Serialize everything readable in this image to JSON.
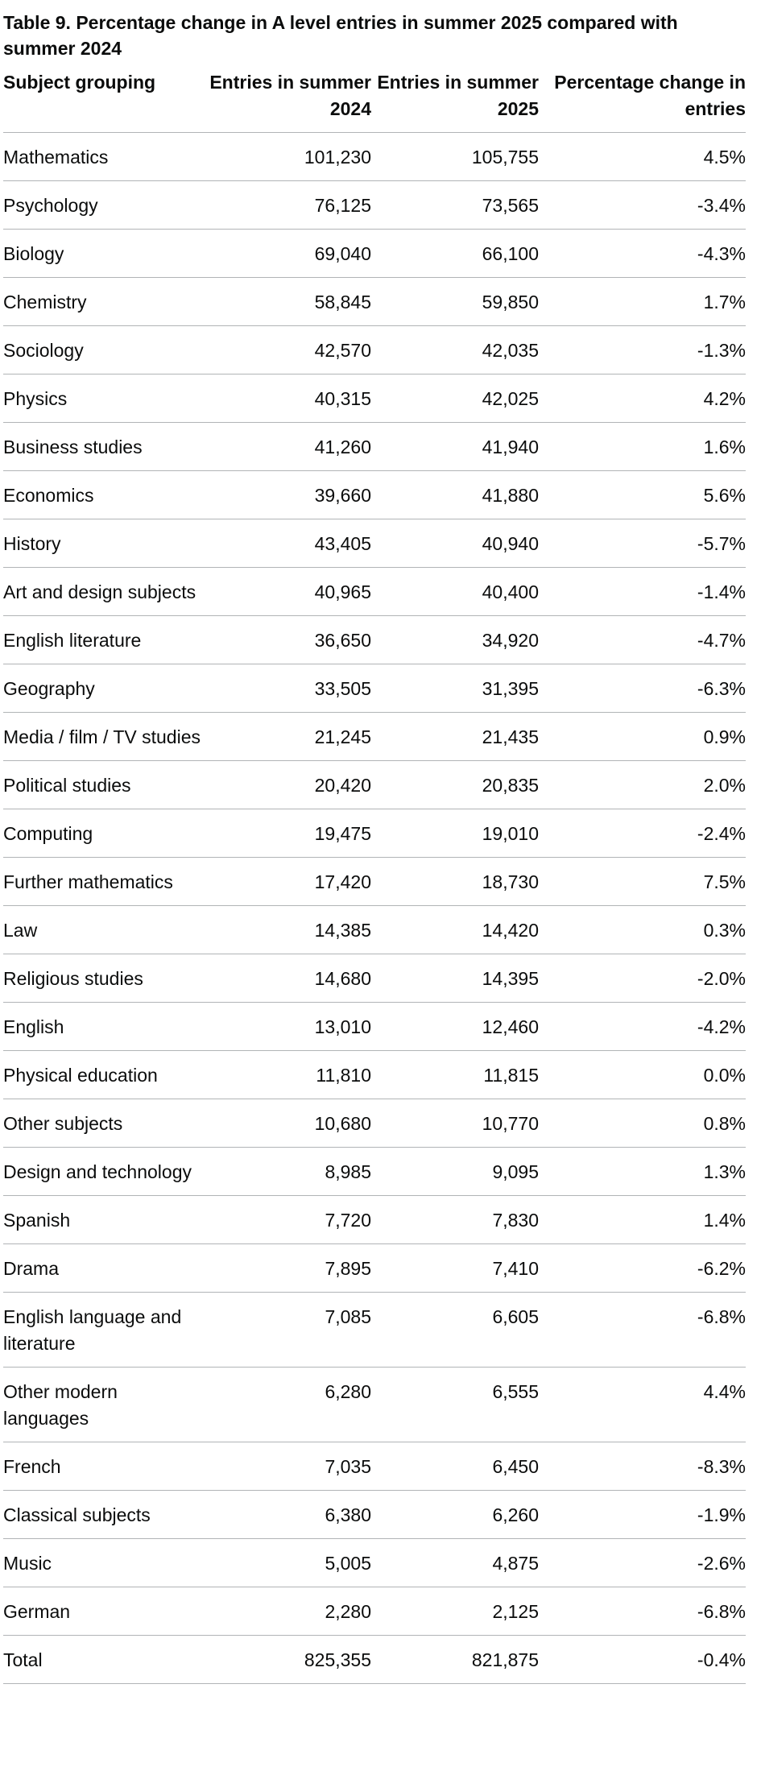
{
  "caption": "Table 9. Percentage change in A level entries in summer 2025 compared with summer 2024",
  "headers": {
    "subject": "Subject grouping",
    "entries_2024": "Entries in summer 2024",
    "entries_2025": "Entries in summer 2025",
    "pct_change": "Percentage change in entries"
  },
  "rows": [
    {
      "subject": "Mathematics",
      "e2024": "101,230",
      "e2025": "105,755",
      "pct": "4.5%"
    },
    {
      "subject": "Psychology",
      "e2024": "76,125",
      "e2025": "73,565",
      "pct": "-3.4%"
    },
    {
      "subject": "Biology",
      "e2024": "69,040",
      "e2025": "66,100",
      "pct": "-4.3%"
    },
    {
      "subject": "Chemistry",
      "e2024": "58,845",
      "e2025": "59,850",
      "pct": "1.7%"
    },
    {
      "subject": "Sociology",
      "e2024": "42,570",
      "e2025": "42,035",
      "pct": "-1.3%"
    },
    {
      "subject": "Physics",
      "e2024": "40,315",
      "e2025": "42,025",
      "pct": "4.2%"
    },
    {
      "subject": "Business studies",
      "e2024": "41,260",
      "e2025": "41,940",
      "pct": "1.6%"
    },
    {
      "subject": "Economics",
      "e2024": "39,660",
      "e2025": "41,880",
      "pct": "5.6%"
    },
    {
      "subject": "History",
      "e2024": "43,405",
      "e2025": "40,940",
      "pct": "-5.7%"
    },
    {
      "subject": "Art and design subjects",
      "e2024": "40,965",
      "e2025": "40,400",
      "pct": "-1.4%"
    },
    {
      "subject": "English literature",
      "e2024": "36,650",
      "e2025": "34,920",
      "pct": "-4.7%"
    },
    {
      "subject": "Geography",
      "e2024": "33,505",
      "e2025": "31,395",
      "pct": "-6.3%"
    },
    {
      "subject": "Media / film / TV studies",
      "e2024": "21,245",
      "e2025": "21,435",
      "pct": "0.9%"
    },
    {
      "subject": "Political studies",
      "e2024": "20,420",
      "e2025": "20,835",
      "pct": "2.0%"
    },
    {
      "subject": "Computing",
      "e2024": "19,475",
      "e2025": "19,010",
      "pct": "-2.4%"
    },
    {
      "subject": "Further mathematics",
      "e2024": "17,420",
      "e2025": "18,730",
      "pct": "7.5%"
    },
    {
      "subject": "Law",
      "e2024": "14,385",
      "e2025": "14,420",
      "pct": "0.3%"
    },
    {
      "subject": "Religious studies",
      "e2024": "14,680",
      "e2025": "14,395",
      "pct": "-2.0%"
    },
    {
      "subject": "English",
      "e2024": "13,010",
      "e2025": "12,460",
      "pct": "-4.2%"
    },
    {
      "subject": "Physical education",
      "e2024": "11,810",
      "e2025": "11,815",
      "pct": "0.0%"
    },
    {
      "subject": "Other subjects",
      "e2024": "10,680",
      "e2025": "10,770",
      "pct": "0.8%"
    },
    {
      "subject": "Design and technology",
      "e2024": "8,985",
      "e2025": "9,095",
      "pct": "1.3%"
    },
    {
      "subject": "Spanish",
      "e2024": "7,720",
      "e2025": "7,830",
      "pct": "1.4%"
    },
    {
      "subject": "Drama",
      "e2024": "7,895",
      "e2025": "7,410",
      "pct": "-6.2%"
    },
    {
      "subject": "English language and literature",
      "e2024": "7,085",
      "e2025": "6,605",
      "pct": "-6.8%"
    },
    {
      "subject": "Other modern languages",
      "e2024": "6,280",
      "e2025": "6,555",
      "pct": "4.4%"
    },
    {
      "subject": "French",
      "e2024": "7,035",
      "e2025": "6,450",
      "pct": "-8.3%"
    },
    {
      "subject": "Classical subjects",
      "e2024": "6,380",
      "e2025": "6,260",
      "pct": "-1.9%"
    },
    {
      "subject": "Music",
      "e2024": "5,005",
      "e2025": "4,875",
      "pct": "-2.6%"
    },
    {
      "subject": "German",
      "e2024": "2,280",
      "e2025": "2,125",
      "pct": "-6.8%"
    },
    {
      "subject": "Total",
      "e2024": "825,355",
      "e2025": "821,875",
      "pct": "-0.4%"
    }
  ]
}
